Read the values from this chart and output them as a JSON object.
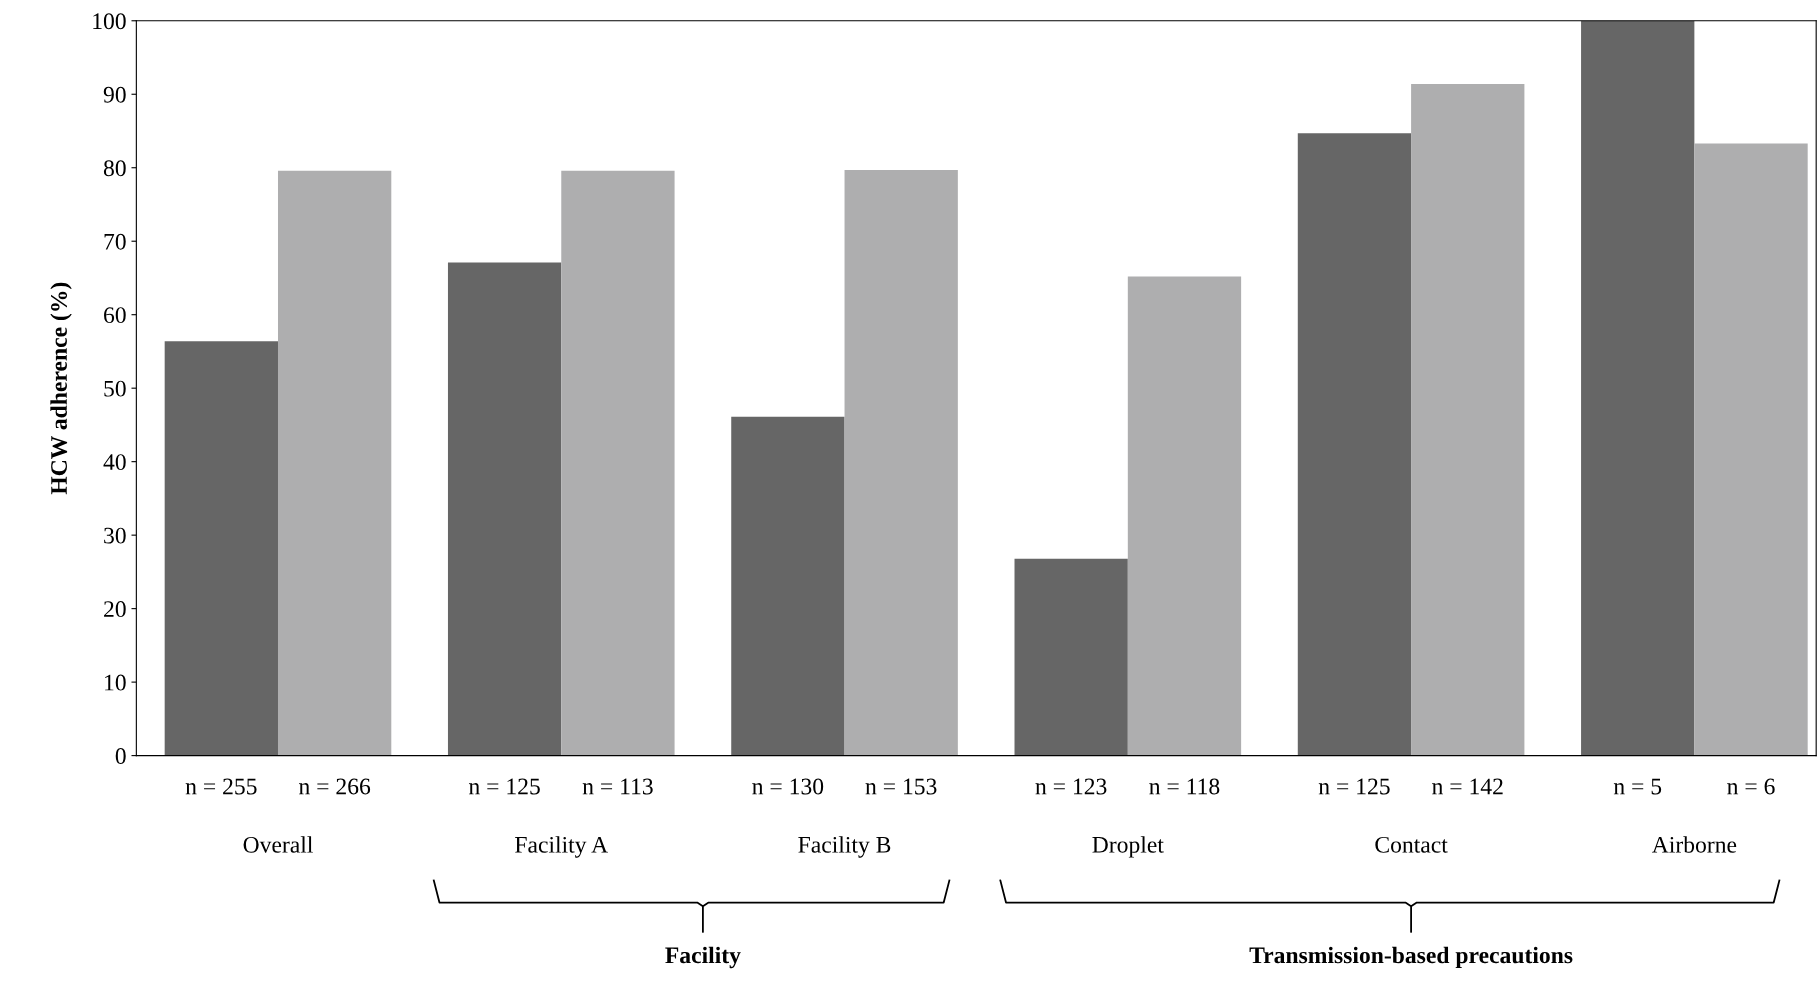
{
  "chart_data": {
    "type": "bar",
    "ylabel": "HCW adherence (%)",
    "categories": [
      "Overall",
      "Facility A",
      "Facility B",
      "Droplet",
      "Contact",
      "Airborne"
    ],
    "series": [
      {
        "color": "#666666",
        "values": [
          56.4,
          67.1,
          46.1,
          26.8,
          84.7,
          100
        ]
      },
      {
        "color": "#aeaeaf",
        "values": [
          79.6,
          79.6,
          79.7,
          65.2,
          91.4,
          83.3
        ]
      }
    ],
    "ylim": [
      0,
      100
    ],
    "yticks": [
      0,
      10,
      20,
      30,
      40,
      50,
      60,
      70,
      80,
      90,
      100
    ],
    "grid": false,
    "legend": false,
    "annotations": [
      "n = 255",
      "n = 266",
      "n = 125",
      "n = 113",
      "n = 130",
      "n = 153",
      "n = 123",
      "n = 118",
      "n = 125",
      "n = 142",
      "n = 5",
      "n = 6",
      "Facility",
      "Transmission-based precautions"
    ]
  }
}
